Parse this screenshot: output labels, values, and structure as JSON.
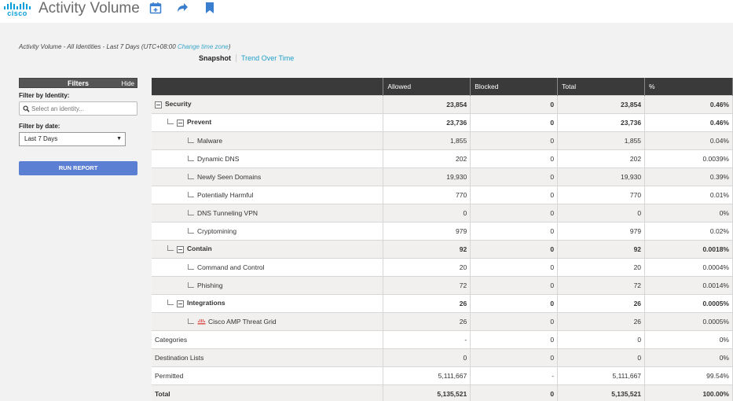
{
  "header": {
    "logo_text": "cisco",
    "title": "Activity Volume",
    "icons": [
      "calendar-add-icon",
      "share-arrow-icon",
      "bookmark-icon"
    ],
    "brand_color": "#049fd9"
  },
  "subline": {
    "prefix": "Activity Volume - All Identities - Last 7 Days (UTC+08:00",
    "link": "Change time zone",
    "suffix": ")"
  },
  "view_tabs": {
    "snapshot": "Snapshot",
    "trend": "Trend Over Time"
  },
  "filters": {
    "title": "Filters",
    "hide": "Hide",
    "identity_label": "Filter by Identity:",
    "identity_placeholder": "Select an identity...",
    "date_label": "Filter by date:",
    "date_value": "Last 7 Days",
    "run_label": "RUN REPORT",
    "run_color": "#5b7fd3"
  },
  "table": {
    "headers": [
      "",
      "Allowed",
      "Blocked",
      "Total",
      "%"
    ],
    "rows": [
      {
        "name": "Security",
        "allowed": "23,854",
        "blocked": "0",
        "total": "23,854",
        "pct": "0.46%"
      },
      {
        "name": "Prevent",
        "allowed": "23,736",
        "blocked": "0",
        "total": "23,736",
        "pct": "0.46%"
      },
      {
        "name": "Malware",
        "allowed": "1,855",
        "blocked": "0",
        "total": "1,855",
        "pct": "0.04%"
      },
      {
        "name": "Dynamic DNS",
        "allowed": "202",
        "blocked": "0",
        "total": "202",
        "pct": "0.0039%"
      },
      {
        "name": "Newly Seen Domains",
        "allowed": "19,930",
        "blocked": "0",
        "total": "19,930",
        "pct": "0.39%"
      },
      {
        "name": "Potentially Harmful",
        "allowed": "770",
        "blocked": "0",
        "total": "770",
        "pct": "0.01%"
      },
      {
        "name": "DNS Tunneling VPN",
        "allowed": "0",
        "blocked": "0",
        "total": "0",
        "pct": "0%"
      },
      {
        "name": "Cryptomining",
        "allowed": "979",
        "blocked": "0",
        "total": "979",
        "pct": "0.02%"
      },
      {
        "name": "Contain",
        "allowed": "92",
        "blocked": "0",
        "total": "92",
        "pct": "0.0018%"
      },
      {
        "name": "Command and Control",
        "allowed": "20",
        "blocked": "0",
        "total": "20",
        "pct": "0.0004%"
      },
      {
        "name": "Phishing",
        "allowed": "72",
        "blocked": "0",
        "total": "72",
        "pct": "0.0014%"
      },
      {
        "name": "Integrations",
        "allowed": "26",
        "blocked": "0",
        "total": "26",
        "pct": "0.0005%"
      },
      {
        "name": "Cisco AMP Threat Grid",
        "allowed": "26",
        "blocked": "0",
        "total": "26",
        "pct": "0.0005%"
      },
      {
        "name": "Categories",
        "allowed": "-",
        "blocked": "0",
        "total": "0",
        "pct": "0%"
      },
      {
        "name": "Destination Lists",
        "allowed": "0",
        "blocked": "0",
        "total": "0",
        "pct": "0%"
      },
      {
        "name": "Permitted",
        "allowed": "5,111,667",
        "blocked": "-",
        "total": "5,111,667",
        "pct": "99.54%"
      },
      {
        "name": "Total",
        "allowed": "5,135,521",
        "blocked": "0",
        "total": "5,135,521",
        "pct": "100.00%"
      }
    ]
  }
}
